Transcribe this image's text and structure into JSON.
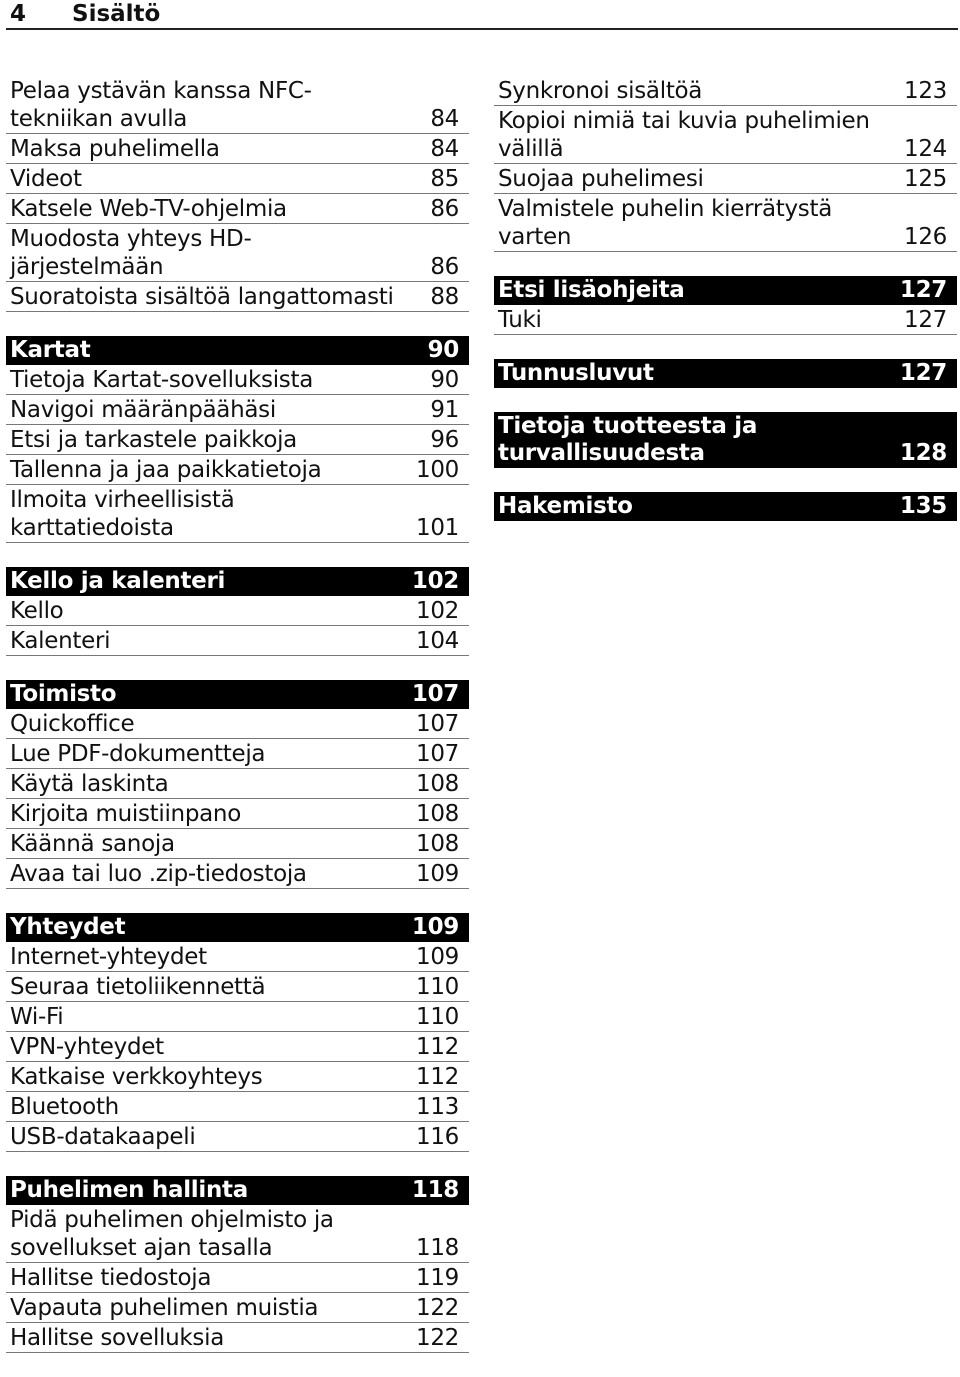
{
  "header": {
    "page_number": "4",
    "title": "Sisältö"
  },
  "left_column": [
    {
      "heading": null,
      "items": [
        {
          "title": "Pelaa ystävän kanssa NFC-tekniikan avulla",
          "page": "84"
        },
        {
          "title": "Maksa puhelimella",
          "page": "84"
        },
        {
          "title": "Videot",
          "page": "85"
        },
        {
          "title": "Katsele Web-TV-ohjelmia",
          "page": "86"
        },
        {
          "title": "Muodosta yhteys HD-järjestelmään",
          "page": "86"
        },
        {
          "title": "Suoratoista sisältöä langattomasti",
          "page": "88"
        }
      ]
    },
    {
      "heading": {
        "title": "Kartat",
        "page": "90"
      },
      "items": [
        {
          "title": "Tietoja Kartat-sovelluksista",
          "page": "90"
        },
        {
          "title": "Navigoi määränpäähäsi",
          "page": "91"
        },
        {
          "title": "Etsi ja tarkastele paikkoja",
          "page": "96"
        },
        {
          "title": "Tallenna ja jaa paikkatietoja",
          "page": "100"
        },
        {
          "title": "Ilmoita virheellisistä karttatiedoista",
          "page": "101"
        }
      ]
    },
    {
      "heading": {
        "title": "Kello ja kalenteri",
        "page": "102"
      },
      "items": [
        {
          "title": "Kello",
          "page": "102"
        },
        {
          "title": "Kalenteri",
          "page": "104"
        }
      ]
    },
    {
      "heading": {
        "title": "Toimisto",
        "page": "107"
      },
      "items": [
        {
          "title": "Quickoffice",
          "page": "107"
        },
        {
          "title": "Lue PDF-dokumentteja",
          "page": "107"
        },
        {
          "title": "Käytä laskinta",
          "page": "108"
        },
        {
          "title": "Kirjoita muistiinpano",
          "page": "108"
        },
        {
          "title": "Käännä sanoja",
          "page": "108"
        },
        {
          "title": "Avaa tai luo .zip-tiedostoja",
          "page": "109"
        }
      ]
    },
    {
      "heading": {
        "title": "Yhteydet",
        "page": "109"
      },
      "items": [
        {
          "title": "Internet-yhteydet",
          "page": "109"
        },
        {
          "title": "Seuraa tietoliikennettä",
          "page": "110"
        },
        {
          "title": "Wi-Fi",
          "page": "110"
        },
        {
          "title": "VPN-yhteydet",
          "page": "112"
        },
        {
          "title": "Katkaise verkkoyhteys",
          "page": "112"
        },
        {
          "title": "Bluetooth",
          "page": "113"
        },
        {
          "title": "USB-datakaapeli",
          "page": "116"
        }
      ]
    },
    {
      "heading": {
        "title": "Puhelimen hallinta",
        "page": "118"
      },
      "items": [
        {
          "title": "Pidä puhelimen ohjelmisto ja sovellukset ajan tasalla",
          "page": "118"
        },
        {
          "title": "Hallitse tiedostoja",
          "page": "119"
        },
        {
          "title": "Vapauta puhelimen muistia",
          "page": "122"
        },
        {
          "title": "Hallitse sovelluksia",
          "page": "122"
        }
      ]
    }
  ],
  "right_column": [
    {
      "heading": null,
      "items": [
        {
          "title": "Synkronoi sisältöä",
          "page": "123"
        },
        {
          "title": "Kopioi nimiä tai kuvia puhelimien välillä",
          "page": "124"
        },
        {
          "title": "Suojaa puhelimesi",
          "page": "125"
        },
        {
          "title": "Valmistele puhelin kierrätystä varten",
          "page": "126"
        }
      ]
    },
    {
      "heading": {
        "title": "Etsi lisäohjeita",
        "page": "127"
      },
      "items": [
        {
          "title": "Tuki",
          "page": "127"
        }
      ]
    },
    {
      "heading": {
        "title": "Tunnusluvut",
        "page": "127"
      },
      "items": []
    },
    {
      "heading": {
        "title": "Tietoja tuotteesta ja turvallisuudesta",
        "page": "128"
      },
      "items": []
    },
    {
      "heading": {
        "title": "Hakemisto",
        "page": "135"
      },
      "items": []
    }
  ]
}
